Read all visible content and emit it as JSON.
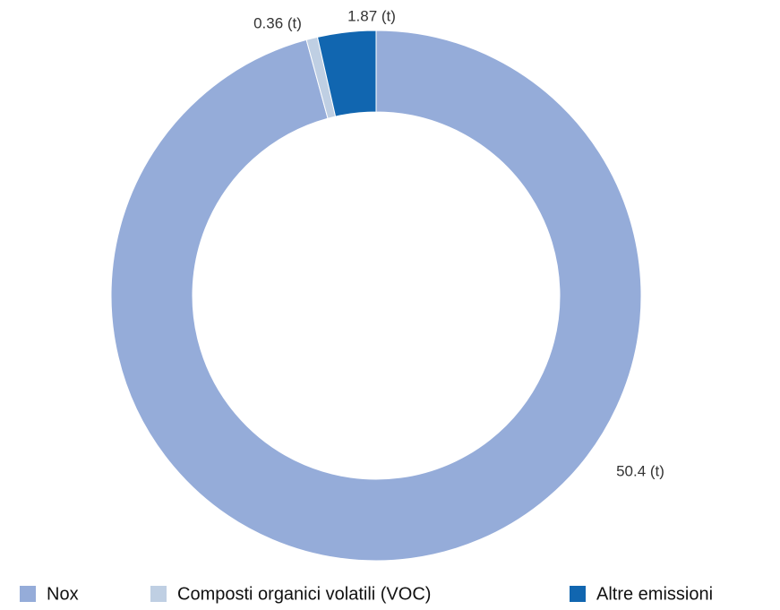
{
  "chart_data": {
    "type": "donut",
    "categories": [
      "Nox",
      "Composti organici volatili (VOC)",
      "Altre emissioni"
    ],
    "values": [
      50.4,
      0.36,
      1.87
    ],
    "value_labels": [
      "50.4 (t)",
      "0.36 (t)",
      "1.87 (t)"
    ],
    "colors": [
      "#95acd9",
      "#bfcfe3",
      "#1166b0"
    ],
    "legend": "bottom"
  }
}
